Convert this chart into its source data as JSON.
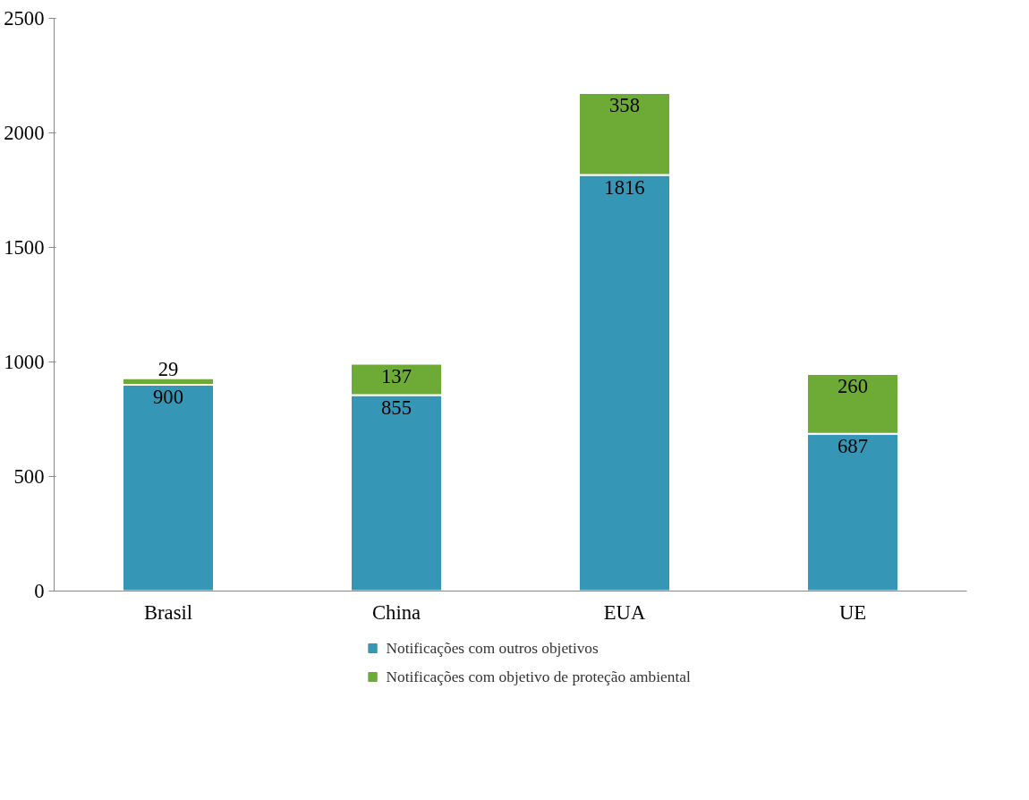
{
  "chart_data": {
    "type": "bar",
    "stacked": true,
    "categories": [
      "Brasil",
      "China",
      "EUA",
      "UE"
    ],
    "series": [
      {
        "name": "Notificações com outros objetivos",
        "color": "#3597b5",
        "values": [
          900,
          855,
          1816,
          687
        ]
      },
      {
        "name": "Notificações com objetivo de proteção ambiental",
        "color": "#6dab36",
        "values": [
          29,
          137,
          358,
          260
        ]
      }
    ],
    "ylim": [
      0,
      2500
    ],
    "yticks": [
      0,
      500,
      1000,
      1500,
      2000,
      2500
    ],
    "grid": false,
    "legend": "bottom",
    "data_labels": true
  }
}
